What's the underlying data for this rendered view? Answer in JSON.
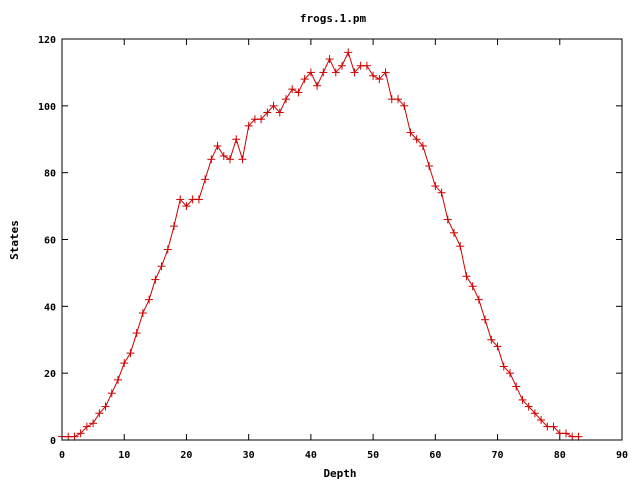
{
  "chart_data": {
    "type": "line",
    "title": "frogs.1.pm",
    "xlabel": "Depth",
    "ylabel": "States",
    "xlim": [
      0,
      90
    ],
    "ylim": [
      0,
      120
    ],
    "xticks": [
      0,
      10,
      20,
      30,
      40,
      50,
      60,
      70,
      80,
      90
    ],
    "yticks": [
      0,
      20,
      40,
      60,
      80,
      100,
      120
    ],
    "grid": false,
    "legend": "none",
    "marker": "plus",
    "color": "#cc0000",
    "series": [
      {
        "x": [
          0,
          1,
          2,
          3,
          4,
          5,
          6,
          7,
          8,
          9,
          10,
          11,
          12,
          13,
          14,
          15,
          16,
          17,
          18,
          19,
          20,
          21,
          22,
          23,
          24,
          25,
          26,
          27,
          28,
          29,
          30,
          31,
          32,
          33,
          34,
          35,
          36,
          37,
          38,
          39,
          40,
          41,
          42,
          43,
          44,
          45,
          46,
          47,
          48,
          49,
          50,
          51,
          52,
          53,
          54,
          55,
          56,
          57,
          58,
          59,
          60,
          61,
          62,
          63,
          64,
          65,
          66,
          67,
          68,
          69,
          70,
          71,
          72,
          73,
          74,
          75,
          76,
          77,
          78,
          79,
          80,
          81,
          82,
          83
        ],
        "y": [
          1,
          1,
          1,
          2,
          4,
          5,
          8,
          10,
          14,
          18,
          23,
          26,
          32,
          38,
          42,
          48,
          52,
          57,
          64,
          72,
          70,
          72,
          72,
          78,
          84,
          88,
          85,
          84,
          90,
          84,
          94,
          96,
          96,
          98,
          100,
          98,
          102,
          105,
          104,
          108,
          110,
          106,
          110,
          114,
          110,
          112,
          116,
          110,
          112,
          112,
          109,
          108,
          110,
          102,
          102,
          100,
          92,
          90,
          88,
          82,
          76,
          74,
          66,
          62,
          58,
          49,
          46,
          42,
          36,
          30,
          28,
          22,
          20,
          16,
          12,
          10,
          8,
          6,
          4,
          4,
          2,
          2,
          1,
          1
        ]
      }
    ]
  }
}
